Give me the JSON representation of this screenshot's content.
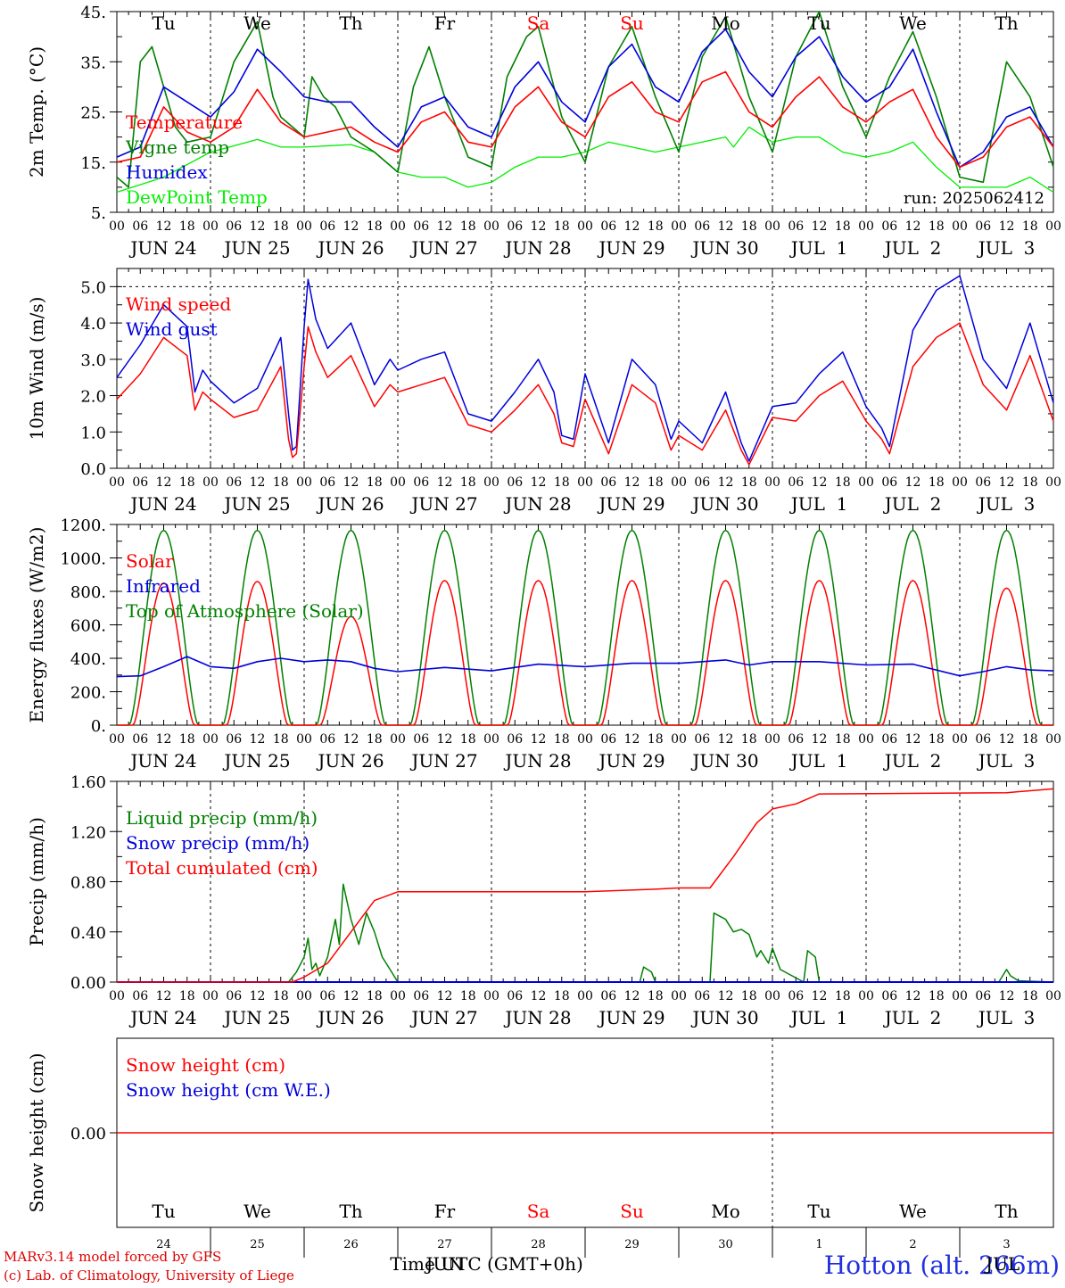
{
  "footer": {
    "credit_line1": "MARv3.14 model forced by GFS",
    "credit_line2": "(c) Lab. of Climatology, University of Liege",
    "xlabel": "Time UTC (GMT+0h)",
    "station": "Hotton (alt. 266m)",
    "overlap_label": "JUN",
    "overlap_label2": "JUL",
    "colors": {
      "credit": "#e00000",
      "station": "#2030e0"
    }
  },
  "day_names": [
    "Tu",
    "We",
    "Th",
    "Fr",
    "Sa",
    "Su",
    "Mo",
    "Tu",
    "We",
    "Th"
  ],
  "weekend_day_indices": [
    4,
    5
  ],
  "date_labels": [
    "JUN 24",
    "JUN 25",
    "JUN 26",
    "JUN 27",
    "JUN 28",
    "JUN 29",
    "JUN 30",
    "JUL  1",
    "JUL  2",
    "JUL  3"
  ],
  "hour_ticks": [
    "00",
    "06",
    "12",
    "18"
  ],
  "end_tick": "00",
  "bottom_day_numbers": [
    "24",
    "25",
    "26",
    "27",
    "28",
    "29",
    "30",
    "1",
    "2",
    "3"
  ],
  "chart_data": [
    {
      "type": "line",
      "ylabel": "2m Temp. (°C)",
      "ylim": [
        5,
        45
      ],
      "yticks": [
        "5.",
        "15.",
        "25.",
        "35.",
        "45."
      ],
      "annotation": "run: 2025062412",
      "x_unit": "hours since JUN 24 00 UTC",
      "series": [
        {
          "name": "Temperature",
          "color": "#ff0000",
          "x": [
            0,
            6,
            12,
            18,
            24,
            30,
            36,
            42,
            48,
            54,
            60,
            66,
            72,
            78,
            84,
            90,
            96,
            102,
            108,
            114,
            120,
            126,
            132,
            138,
            144,
            150,
            156,
            162,
            168,
            174,
            180,
            186,
            192,
            198,
            204,
            210,
            216,
            222,
            228,
            234,
            240
          ],
          "y": [
            15,
            16,
            26,
            21,
            19,
            22,
            29.5,
            23,
            20,
            21,
            22,
            19,
            17,
            23,
            25,
            19,
            18,
            26,
            30,
            23,
            20,
            28,
            31,
            25,
            23,
            31,
            33,
            25,
            22,
            28,
            32,
            26,
            23,
            27,
            29.5,
            20,
            14,
            16,
            22,
            24,
            18
          ]
        },
        {
          "name": "Vigne temp",
          "color": "#008000",
          "x": [
            0,
            3,
            6,
            9,
            12,
            15,
            18,
            24,
            30,
            36,
            40,
            42,
            48,
            50,
            53,
            56,
            60,
            66,
            72,
            76,
            80,
            84,
            90,
            96,
            100,
            105,
            108,
            114,
            120,
            126,
            132,
            138,
            144,
            150,
            156,
            162,
            168,
            174,
            180,
            186,
            192,
            198,
            204,
            210,
            216,
            222,
            228,
            234,
            240
          ],
          "y": [
            12,
            10,
            35,
            38,
            30,
            22,
            19,
            20,
            35,
            43,
            28,
            24,
            20,
            32,
            28,
            26,
            20,
            17,
            13,
            30,
            38,
            28,
            16,
            14,
            32,
            40,
            42,
            24,
            15,
            34,
            42,
            28,
            17,
            36,
            44,
            28,
            17,
            36,
            45,
            30,
            20,
            32,
            41,
            28,
            12,
            11,
            35,
            28,
            14
          ]
        },
        {
          "name": "Humidex",
          "color": "#0000dd",
          "x": [
            0,
            6,
            12,
            18,
            24,
            30,
            36,
            42,
            48,
            54,
            60,
            66,
            72,
            78,
            84,
            90,
            96,
            102,
            108,
            114,
            120,
            126,
            132,
            138,
            144,
            150,
            156,
            162,
            168,
            174,
            180,
            186,
            192,
            198,
            204,
            210,
            216,
            222,
            228,
            234,
            240
          ],
          "y": [
            16,
            18,
            30,
            27,
            24,
            29,
            37.5,
            33,
            28,
            27,
            27,
            22,
            18,
            26,
            28,
            22,
            20,
            30,
            35,
            27,
            23,
            34,
            38.5,
            30,
            27,
            37,
            41.5,
            33,
            28,
            36,
            40,
            32,
            27,
            30,
            37.5,
            25,
            14,
            17,
            24,
            26,
            18
          ]
        },
        {
          "name": "DewPoint Temp",
          "color": "#00ee00",
          "x": [
            0,
            12,
            24,
            36,
            42,
            48,
            60,
            66,
            72,
            78,
            84,
            90,
            96,
            102,
            108,
            114,
            120,
            126,
            132,
            138,
            144,
            150,
            156,
            158,
            162,
            168,
            174,
            180,
            186,
            192,
            198,
            204,
            210,
            216,
            222,
            228,
            234,
            240
          ],
          "y": [
            9,
            12,
            17,
            19.5,
            18,
            18,
            18.5,
            17,
            13,
            12,
            12,
            10,
            11,
            14,
            16,
            16,
            17,
            19,
            18,
            17,
            18,
            19,
            20,
            18,
            22,
            19,
            20,
            20,
            17,
            16,
            17,
            19,
            14,
            10,
            10,
            10,
            12,
            9
          ]
        }
      ]
    },
    {
      "type": "line",
      "ylabel": "10m Wind (m/s)",
      "ylim": [
        0,
        5.5
      ],
      "yticks": [
        "0.0",
        "1.0",
        "2.0",
        "3.0",
        "4.0",
        "5.0"
      ],
      "reference_line": 5.0,
      "x_unit": "hours since JUN 24 00 UTC",
      "series": [
        {
          "name": "Wind speed",
          "color": "#ff0000",
          "x": [
            0,
            6,
            12,
            18,
            20,
            22,
            24,
            30,
            36,
            42,
            44,
            45,
            46,
            48,
            49,
            51,
            54,
            60,
            66,
            70,
            72,
            78,
            84,
            90,
            96,
            102,
            108,
            112,
            114,
            117,
            120,
            126,
            132,
            138,
            142,
            144,
            150,
            156,
            160,
            162,
            168,
            174,
            180,
            186,
            192,
            196,
            198,
            204,
            210,
            216,
            222,
            228,
            234,
            240
          ],
          "y": [
            1.9,
            2.6,
            3.6,
            3.1,
            1.6,
            2.1,
            1.9,
            1.4,
            1.6,
            2.8,
            0.8,
            0.3,
            0.4,
            2.8,
            3.9,
            3.2,
            2.5,
            3.1,
            1.7,
            2.3,
            2.1,
            2.3,
            2.5,
            1.2,
            1.0,
            1.6,
            2.3,
            1.5,
            0.7,
            0.6,
            1.9,
            0.4,
            2.3,
            1.8,
            0.5,
            0.9,
            0.5,
            1.6,
            0.5,
            0.1,
            1.4,
            1.3,
            2.0,
            2.4,
            1.3,
            0.8,
            0.4,
            2.8,
            3.6,
            4.0,
            2.3,
            1.6,
            3.1,
            1.3
          ]
        },
        {
          "name": "Wind gust",
          "color": "#0000dd",
          "x": [
            0,
            6,
            12,
            18,
            20,
            22,
            24,
            30,
            36,
            42,
            44,
            45,
            46,
            48,
            49,
            51,
            54,
            60,
            66,
            70,
            72,
            78,
            84,
            90,
            96,
            102,
            108,
            112,
            114,
            117,
            120,
            126,
            132,
            138,
            142,
            144,
            150,
            156,
            160,
            162,
            168,
            174,
            180,
            186,
            192,
            196,
            198,
            204,
            210,
            216,
            222,
            228,
            234,
            240
          ],
          "y": [
            2.5,
            3.4,
            4.5,
            3.9,
            2.1,
            2.7,
            2.4,
            1.8,
            2.2,
            3.6,
            1.5,
            0.5,
            0.6,
            3.9,
            5.2,
            4.1,
            3.3,
            4.0,
            2.3,
            3.0,
            2.7,
            3.0,
            3.2,
            1.5,
            1.3,
            2.1,
            3.0,
            2.1,
            0.9,
            0.8,
            2.6,
            0.7,
            3.0,
            2.3,
            0.8,
            1.3,
            0.7,
            2.1,
            0.7,
            0.2,
            1.7,
            1.8,
            2.6,
            3.2,
            1.7,
            1.1,
            0.6,
            3.8,
            4.9,
            5.3,
            3.0,
            2.2,
            4.0,
            1.8
          ]
        }
      ]
    },
    {
      "type": "line",
      "ylabel": "Energy fluxes (W/m2)",
      "ylim": [
        0,
        1200
      ],
      "yticks": [
        "0.",
        "200.",
        "400.",
        "600.",
        "800.",
        "1000.",
        "1200."
      ],
      "x_unit": "hours since JUN 24 00 UTC",
      "daily_peaks": {
        "Top of Atmosphere (Solar)": [
          1165,
          1165,
          1165,
          1165,
          1165,
          1165,
          1165,
          1165,
          1165,
          1165
        ],
        "Solar": [
          850,
          860,
          650,
          865,
          865,
          865,
          865,
          865,
          865,
          820
        ]
      },
      "series": [
        {
          "name": "Solar",
          "color": "#ff0000"
        },
        {
          "name": "Infrared",
          "color": "#0000dd",
          "x": [
            0,
            6,
            12,
            18,
            24,
            30,
            36,
            42,
            48,
            54,
            60,
            66,
            72,
            84,
            96,
            108,
            120,
            132,
            144,
            150,
            156,
            162,
            168,
            180,
            192,
            204,
            216,
            222,
            228,
            234,
            240
          ],
          "y": [
            290,
            295,
            350,
            410,
            350,
            340,
            380,
            400,
            380,
            390,
            380,
            340,
            320,
            345,
            325,
            365,
            350,
            370,
            370,
            380,
            390,
            360,
            380,
            380,
            360,
            365,
            295,
            320,
            350,
            330,
            325
          ]
        },
        {
          "name": "Top of Atmosphere (Solar)",
          "color": "#008000"
        }
      ]
    },
    {
      "type": "line",
      "ylabel": "Precip (mm/h)",
      "ylim": [
        0,
        1.6
      ],
      "yticks": [
        "0.00",
        "0.40",
        "0.80",
        "1.20",
        "1.60"
      ],
      "x_unit": "hours since JUN 24 00 UTC",
      "series": [
        {
          "name": "Liquid precip (mm/h)",
          "color": "#008000",
          "x": [
            0,
            44,
            46,
            48,
            49,
            50,
            51,
            52,
            54,
            56,
            57,
            58,
            60,
            62,
            64,
            66,
            68,
            70,
            72,
            134,
            135,
            137,
            138,
            152,
            153,
            156,
            158,
            160,
            162,
            164,
            165,
            167,
            168,
            170,
            176,
            177,
            179,
            180,
            226,
            228,
            229,
            230,
            231,
            240
          ],
          "y": [
            0,
            0,
            0.08,
            0.2,
            0.35,
            0.1,
            0.15,
            0.05,
            0.2,
            0.5,
            0.3,
            0.78,
            0.5,
            0.3,
            0.55,
            0.4,
            0.2,
            0.1,
            0,
            0,
            0.12,
            0.08,
            0,
            0,
            0.55,
            0.5,
            0.4,
            0.42,
            0.38,
            0.2,
            0.25,
            0.15,
            0.27,
            0.1,
            0,
            0.25,
            0.2,
            0,
            0,
            0.1,
            0.05,
            0.03,
            0.01,
            0
          ]
        },
        {
          "name": "Snow precip (mm/h)",
          "color": "#0000dd",
          "x": [
            0,
            240
          ],
          "y": [
            0,
            0
          ]
        },
        {
          "name": "Total cumulated (cm)",
          "color": "#ff0000",
          "x": [
            0,
            45,
            48,
            54,
            60,
            66,
            72,
            120,
            138,
            144,
            152,
            158,
            164,
            168,
            174,
            180,
            228,
            240
          ],
          "y": [
            0,
            0,
            0.04,
            0.15,
            0.4,
            0.65,
            0.72,
            0.72,
            0.74,
            0.75,
            0.75,
            1.0,
            1.27,
            1.38,
            1.42,
            1.5,
            1.51,
            1.54
          ]
        }
      ]
    },
    {
      "type": "line",
      "ylabel": "Snow height (cm)",
      "ylim": [
        -1,
        1
      ],
      "yticks": [
        "0.00"
      ],
      "x_unit": "hours since JUN 24 00 UTC",
      "series": [
        {
          "name": "Snow height (cm)",
          "color": "#ff0000",
          "x": [
            0,
            240
          ],
          "y": [
            0,
            0
          ]
        },
        {
          "name": "Snow height (cm W.E.)",
          "color": "#0000dd"
        }
      ]
    }
  ]
}
